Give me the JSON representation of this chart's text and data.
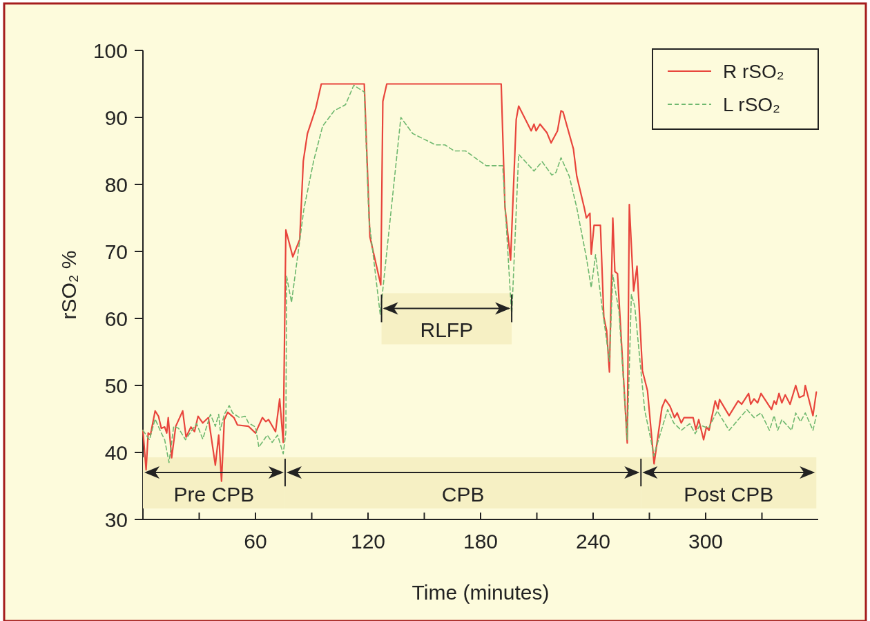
{
  "chart_data": {
    "type": "line",
    "xlabel": "Time (minutes)",
    "ylabel": "rSO₂ %",
    "xlim": [
      0,
      360
    ],
    "ylim": [
      30,
      100
    ],
    "xticks": [
      {
        "value": 30,
        "label": null
      },
      60,
      {
        "value": 90,
        "label": null
      },
      120,
      {
        "value": 150,
        "label": null
      },
      180,
      {
        "value": 210,
        "label": null
      },
      240,
      {
        "value": 270,
        "label": null
      },
      300,
      {
        "value": 330,
        "label": null
      }
    ],
    "yticks": [
      30,
      40,
      50,
      60,
      70,
      80,
      90,
      100
    ],
    "grid": false,
    "legend": "top right",
    "series": [
      {
        "name": "R rSO₂",
        "color": "#e8453c",
        "line_style": "solid",
        "x": [
          0,
          1.7,
          2.8,
          4,
          6.5,
          8.3,
          9.8,
          11.6,
          12.7,
          13.5,
          15.3,
          17.5,
          21.2,
          23,
          25.6,
          27.5,
          29.4,
          31.9,
          34.9,
          38.6,
          40.4,
          41.9,
          43.4,
          45.2,
          48.5,
          50.4,
          56.3,
          60,
          63.7,
          65.5,
          67,
          70.7,
          72.9,
          74.8,
          76.2,
          79.9,
          83.6,
          85.5,
          87.7,
          92.1,
          95.1,
          118,
          121,
          126.8,
          127.9,
          130,
          191,
          193,
          196,
          199,
          200.3,
          207,
          208.5,
          209.6,
          211.7,
          215.4,
          217.6,
          221,
          222.9,
          224,
          229.5,
          231.3,
          235.3,
          236.4,
          238.3,
          239,
          240.5,
          243.9,
          245.7,
          247.2,
          248.7,
          250.5,
          251.6,
          253,
          258.2,
          259.3,
          261.6,
          263.4,
          266.3,
          269,
          272.5,
          276.7,
          278.5,
          281,
          283.4,
          284.8,
          287,
          288.5,
          293.3,
          294.8,
          296.3,
          298.9,
          300.4,
          301.8,
          305.1,
          306.6,
          307.4,
          312.5,
          317.3,
          319.2,
          322.9,
          324,
          325.8,
          327.7,
          329.5,
          332.1,
          335.1,
          336.5,
          337.6,
          339.1,
          340.6,
          342.4,
          345,
          348,
          349.9,
          352.4,
          353.1,
          355.4,
          357.2,
          359
        ],
        "values": [
          43.3,
          37.4,
          42.9,
          42.6,
          46.2,
          45.4,
          43.6,
          43.8,
          42.9,
          45.2,
          39.2,
          43.9,
          46.2,
          42.3,
          43.8,
          43.1,
          45.4,
          44.4,
          45.2,
          38.1,
          42.6,
          35.7,
          44.9,
          46,
          45.2,
          44.1,
          43.9,
          42.9,
          45.2,
          44.6,
          44.9,
          43.1,
          48,
          41.5,
          73.2,
          69.2,
          71.8,
          83.5,
          87.6,
          91.3,
          95,
          95,
          72.2,
          65,
          92.4,
          95,
          95,
          76.6,
          68.7,
          89.7,
          91.7,
          88,
          89,
          88,
          89,
          87.7,
          86.2,
          88,
          91,
          90.8,
          85.3,
          81.2,
          76.5,
          75,
          75.7,
          69.6,
          73.9,
          73.9,
          60.2,
          58.2,
          52,
          75,
          67,
          66.7,
          41.4,
          77,
          64.1,
          67.8,
          52.2,
          49.2,
          38.3,
          46.7,
          47.9,
          46.9,
          45.2,
          45.9,
          44.4,
          45.2,
          45.2,
          43.4,
          44.9,
          41.9,
          43.8,
          43.3,
          47.7,
          46.5,
          47.9,
          45.5,
          47.7,
          47.2,
          48.8,
          47.2,
          48,
          47.4,
          48.8,
          47.7,
          46.4,
          47.7,
          47.2,
          48.8,
          47.4,
          48.6,
          47.2,
          50,
          48.2,
          48.5,
          50,
          47.5,
          45.5,
          49
        ]
      },
      {
        "name": "L rSO₂",
        "color": "#6fb86f",
        "line_style": "dashed",
        "x": [
          0,
          3.5,
          6.5,
          9.8,
          11.6,
          13.9,
          16.4,
          19,
          22.7,
          25.6,
          28.6,
          31.9,
          36,
          38.6,
          40.4,
          41.2,
          43.4,
          46,
          47.8,
          51.5,
          54.5,
          56.3,
          60,
          61.8,
          66.3,
          68.9,
          71.8,
          74.8,
          76.2,
          76.6,
          79.2,
          85.8,
          91,
          95.8,
          102,
          108,
          112.4,
          118,
          120.5,
          126.5,
          137.5,
          143.8,
          156,
          161,
          166,
          172,
          183,
          191.8,
          196.6,
          200.3,
          208.5,
          212.8,
          218,
          220.2,
          222.9,
          227.3,
          231.3,
          236.4,
          239,
          241.3,
          244.6,
          248.7,
          250.5,
          253.8,
          258.2,
          260.4,
          262.2,
          267.5,
          270.8,
          272.3,
          279.7,
          283,
          287,
          291.5,
          294.4,
          297,
          301.5,
          306.2,
          312.5,
          322,
          325.8,
          329.5,
          334,
          336.5,
          338.4,
          340.6,
          345.8,
          348,
          350.6,
          353.1,
          357.2,
          359
        ],
        "values": [
          43.3,
          41.9,
          45,
          42.9,
          41.9,
          38.5,
          43.9,
          43.6,
          41.9,
          43.1,
          44.3,
          42,
          45.7,
          43.9,
          45.7,
          43.3,
          45.7,
          47,
          45.9,
          45.2,
          45.4,
          44.4,
          43.8,
          40.8,
          42.6,
          41.5,
          42.6,
          39.8,
          43,
          66.3,
          62.4,
          76.3,
          83.5,
          88.7,
          91,
          91.9,
          94.8,
          93.8,
          74.8,
          60.6,
          90,
          87.6,
          85.9,
          85.9,
          85,
          85,
          82.8,
          82.8,
          60.3,
          84.5,
          82,
          83.4,
          81.4,
          81.8,
          84,
          81.2,
          76.5,
          69.1,
          64.6,
          69.5,
          62.1,
          53.6,
          66.5,
          61,
          41.9,
          63.6,
          61.8,
          46.3,
          41.9,
          39.5,
          46.4,
          44.4,
          43.3,
          44.3,
          42.8,
          44.1,
          43.6,
          46.2,
          43.3,
          46.4,
          45.2,
          45.9,
          43.3,
          45.5,
          43.3,
          44.9,
          43.3,
          45.9,
          44.6,
          45.9,
          43.3,
          45.5
        ]
      }
    ],
    "bands": [
      {
        "axis": "x",
        "from": 0,
        "to": 75.8,
        "label": "Pre CPB",
        "color": "#f6f0c4"
      },
      {
        "axis": "x",
        "from": 75.8,
        "to": 265.5,
        "label": "CPB",
        "color": "#f6f0c4"
      },
      {
        "axis": "x",
        "from": 265.5,
        "to": 359,
        "label": "Post CPB",
        "color": "#f6f0c4"
      },
      {
        "axis": "x",
        "from": 127.2,
        "to": 196.6,
        "label": "RLFP",
        "color": "#f6f0c4"
      }
    ]
  }
}
